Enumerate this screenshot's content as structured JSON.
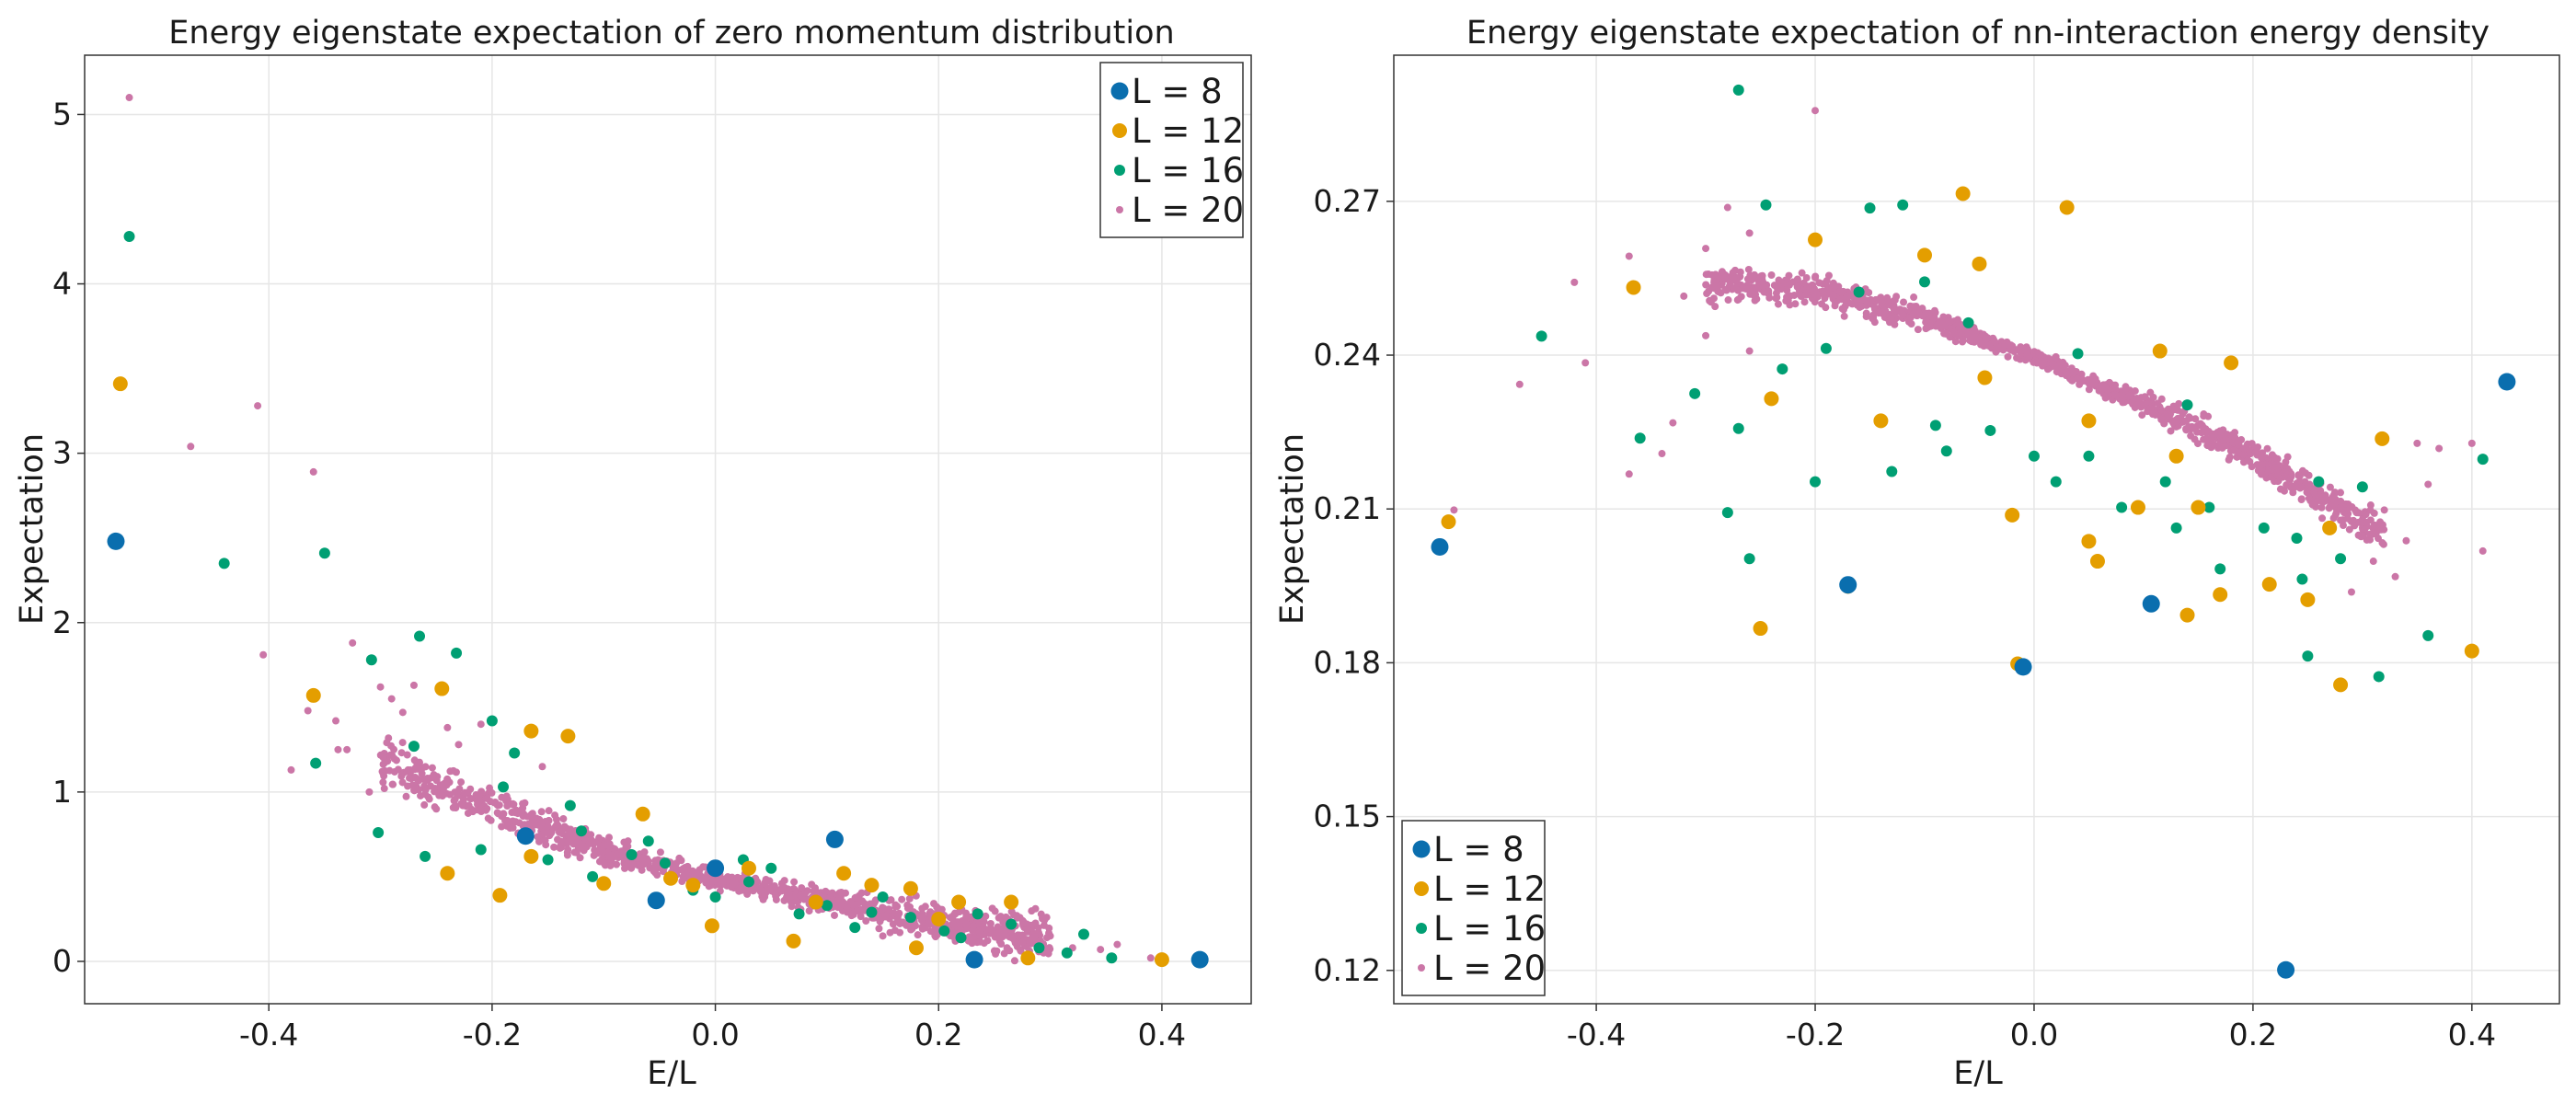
{
  "colors": {
    "L8": "#0a6eae",
    "L12": "#e49e00",
    "L16": "#009f73",
    "L20": "#cb76a7"
  },
  "chart_data": [
    {
      "type": "scatter",
      "title": "Energy eigenstate expectation of zero momentum distribution",
      "xlabel": "E/L",
      "ylabel": "Expectation",
      "xlim": [
        -0.565,
        0.48
      ],
      "ylim": [
        -0.25,
        5.35
      ],
      "xticks": [
        -0.4,
        -0.2,
        0.0,
        0.2,
        0.4
      ],
      "xtick_labels": [
        "-0.4",
        "-0.2",
        "0.0",
        "0.2",
        "0.4"
      ],
      "yticks": [
        0,
        1,
        2,
        3,
        4,
        5
      ],
      "ytick_labels": [
        "0",
        "1",
        "2",
        "3",
        "4",
        "5"
      ],
      "grid": true,
      "legend": "top-right",
      "series": [
        {
          "name": "L = 8",
          "marker": "L8",
          "points": [
            [
              -0.537,
              2.48
            ],
            [
              -0.17,
              0.74
            ],
            [
              0.107,
              0.72
            ],
            [
              0.232,
              0.01
            ],
            [
              0.434,
              0.01
            ],
            [
              -0.053,
              0.36
            ],
            [
              0.0,
              0.55
            ]
          ]
        },
        {
          "name": "L = 12",
          "marker": "L12",
          "points": [
            [
              -0.533,
              3.41
            ],
            [
              -0.36,
              1.57
            ],
            [
              -0.245,
              1.61
            ],
            [
              -0.24,
              0.52
            ],
            [
              -0.193,
              0.39
            ],
            [
              -0.165,
              1.36
            ],
            [
              -0.132,
              1.33
            ],
            [
              -0.1,
              0.46
            ],
            [
              -0.065,
              0.87
            ],
            [
              -0.04,
              0.49
            ],
            [
              -0.003,
              0.21
            ],
            [
              0.03,
              0.55
            ],
            [
              0.07,
              0.12
            ],
            [
              0.115,
              0.52
            ],
            [
              0.14,
              0.45
            ],
            [
              0.175,
              0.43
            ],
            [
              0.18,
              0.08
            ],
            [
              0.218,
              0.35
            ],
            [
              0.265,
              0.35
            ],
            [
              0.28,
              0.02
            ],
            [
              0.4,
              0.01
            ],
            [
              -0.165,
              0.62
            ],
            [
              0.09,
              0.35
            ],
            [
              0.2,
              0.25
            ],
            [
              -0.02,
              0.45
            ]
          ]
        },
        {
          "name": "L = 16",
          "marker": "L16",
          "points": [
            [
              -0.525,
              4.28
            ],
            [
              -0.44,
              2.35
            ],
            [
              -0.35,
              2.41
            ],
            [
              -0.308,
              1.78
            ],
            [
              -0.27,
              1.27
            ],
            [
              -0.265,
              1.92
            ],
            [
              -0.232,
              1.82
            ],
            [
              -0.358,
              1.17
            ],
            [
              -0.302,
              0.76
            ],
            [
              -0.26,
              0.62
            ],
            [
              -0.21,
              0.66
            ],
            [
              -0.2,
              1.42
            ],
            [
              -0.18,
              1.23
            ],
            [
              -0.15,
              0.6
            ],
            [
              -0.13,
              0.92
            ],
            [
              -0.11,
              0.5
            ],
            [
              -0.075,
              0.63
            ],
            [
              -0.045,
              0.58
            ],
            [
              -0.02,
              0.42
            ],
            [
              0.0,
              0.38
            ],
            [
              0.025,
              0.6
            ],
            [
              0.05,
              0.55
            ],
            [
              0.075,
              0.28
            ],
            [
              0.1,
              0.33
            ],
            [
              0.125,
              0.2
            ],
            [
              0.15,
              0.38
            ],
            [
              0.175,
              0.26
            ],
            [
              0.205,
              0.18
            ],
            [
              0.235,
              0.28
            ],
            [
              0.265,
              0.22
            ],
            [
              0.29,
              0.08
            ],
            [
              0.315,
              0.05
            ],
            [
              0.33,
              0.16
            ],
            [
              0.355,
              0.02
            ],
            [
              -0.19,
              1.03
            ],
            [
              -0.06,
              0.71
            ],
            [
              0.03,
              0.47
            ],
            [
              0.14,
              0.29
            ],
            [
              0.22,
              0.14
            ],
            [
              -0.12,
              0.77
            ]
          ]
        },
        {
          "name": "L = 20",
          "marker": "L20",
          "points": [
            [
              -0.525,
              5.1
            ],
            [
              -0.47,
              3.04
            ],
            [
              -0.41,
              3.28
            ],
            [
              -0.36,
              2.89
            ],
            [
              -0.405,
              1.81
            ],
            [
              -0.365,
              1.48
            ],
            [
              -0.338,
              1.25
            ],
            [
              -0.31,
              1.0
            ],
            [
              -0.29,
              1.55
            ],
            [
              -0.25,
              0.9
            ],
            [
              -0.23,
              1.28
            ],
            [
              -0.21,
              1.4
            ],
            [
              -0.155,
              1.15
            ],
            [
              -0.38,
              1.13
            ],
            [
              -0.325,
              1.88
            ],
            [
              -0.27,
              1.63
            ],
            [
              0.3,
              0.15
            ],
            [
              0.32,
              0.08
            ],
            [
              0.36,
              0.1
            ],
            [
              0.39,
              0.02
            ],
            [
              0.345,
              0.07
            ],
            [
              0.27,
              0.27
            ],
            [
              0.215,
              0.12
            ],
            [
              0.15,
              0.15
            ],
            [
              -0.33,
              1.25
            ],
            [
              -0.3,
              1.62
            ],
            [
              -0.28,
              1.47
            ],
            [
              -0.34,
              1.42
            ],
            [
              -0.26,
              1.07
            ],
            [
              -0.24,
              1.38
            ]
          ],
          "band": {
            "x0": -0.3,
            "x1": 0.3,
            "y_at": [
              [
                -0.3,
                1.18
              ],
              [
                -0.2,
                0.9
              ],
              [
                -0.1,
                0.65
              ],
              [
                0.0,
                0.48
              ],
              [
                0.1,
                0.36
              ],
              [
                0.2,
                0.24
              ],
              [
                0.3,
                0.14
              ]
            ],
            "spread_scale": 0.32,
            "count": 1100
          }
        }
      ]
    },
    {
      "type": "scatter",
      "title": "Energy eigenstate expectation of nn-interaction energy density",
      "xlabel": "E/L",
      "ylabel": "Expectation",
      "xlim": [
        -0.585,
        0.48
      ],
      "ylim": [
        0.1135,
        0.2985
      ],
      "xticks": [
        -0.4,
        -0.2,
        0.0,
        0.2,
        0.4
      ],
      "xtick_labels": [
        "-0.4",
        "-0.2",
        "0.0",
        "0.2",
        "0.4"
      ],
      "yticks": [
        0.12,
        0.15,
        0.18,
        0.21,
        0.24,
        0.27
      ],
      "ytick_labels": [
        "0.12",
        "0.15",
        "0.18",
        "0.21",
        "0.24",
        "0.27"
      ],
      "grid": true,
      "legend": "bottom-left",
      "series": [
        {
          "name": "L = 8",
          "marker": "L8",
          "points": [
            [
              -0.543,
              0.2026
            ],
            [
              -0.17,
              0.1952
            ],
            [
              -0.01,
              0.1792
            ],
            [
              0.107,
              0.1915
            ],
            [
              0.23,
              0.1201
            ],
            [
              0.432,
              0.2348
            ]
          ]
        },
        {
          "name": "L = 12",
          "marker": "L12",
          "points": [
            [
              -0.535,
              0.2075
            ],
            [
              -0.366,
              0.2532
            ],
            [
              -0.2,
              0.2625
            ],
            [
              -0.25,
              0.1867
            ],
            [
              -0.24,
              0.2315
            ],
            [
              -0.17,
              0.1949
            ],
            [
              -0.14,
              0.2272
            ],
            [
              -0.1,
              0.2595
            ],
            [
              -0.065,
              0.2715
            ],
            [
              -0.05,
              0.2578
            ],
            [
              -0.045,
              0.2356
            ],
            [
              -0.02,
              0.2088
            ],
            [
              -0.015,
              0.1798
            ],
            [
              0.03,
              0.2688
            ],
            [
              0.05,
              0.2037
            ],
            [
              0.058,
              0.1998
            ],
            [
              0.095,
              0.2103
            ],
            [
              0.115,
              0.2408
            ],
            [
              0.13,
              0.2203
            ],
            [
              0.14,
              0.1893
            ],
            [
              0.15,
              0.2103
            ],
            [
              0.18,
              0.2385
            ],
            [
              0.17,
              0.1933
            ],
            [
              0.215,
              0.1953
            ],
            [
              0.25,
              0.1923
            ],
            [
              0.27,
              0.2063
            ],
            [
              0.28,
              0.1757
            ],
            [
              0.318,
              0.2237
            ],
            [
              0.4,
              0.1823
            ],
            [
              0.05,
              0.2272
            ]
          ]
        },
        {
          "name": "L = 16",
          "marker": "L16",
          "points": [
            [
              -0.27,
              0.2917
            ],
            [
              -0.45,
              0.2437
            ],
            [
              -0.36,
              0.2238
            ],
            [
              -0.31,
              0.2325
            ],
            [
              -0.27,
              0.2257
            ],
            [
              -0.26,
              0.2003
            ],
            [
              -0.23,
              0.2373
            ],
            [
              -0.2,
              0.2153
            ],
            [
              -0.13,
              0.2173
            ],
            [
              -0.245,
              0.2693
            ],
            [
              -0.15,
              0.2687
            ],
            [
              -0.12,
              0.2693
            ],
            [
              -0.1,
              0.2543
            ],
            [
              -0.09,
              0.2263
            ],
            [
              -0.08,
              0.2213
            ],
            [
              -0.04,
              0.2253
            ],
            [
              0.0,
              0.2203
            ],
            [
              0.02,
              0.2153
            ],
            [
              0.05,
              0.2203
            ],
            [
              0.08,
              0.2103
            ],
            [
              0.12,
              0.2153
            ],
            [
              0.13,
              0.2063
            ],
            [
              0.16,
              0.2103
            ],
            [
              0.17,
              0.1983
            ],
            [
              0.21,
              0.2063
            ],
            [
              0.24,
              0.2043
            ],
            [
              0.245,
              0.1963
            ],
            [
              0.25,
              0.1813
            ],
            [
              0.28,
              0.2003
            ],
            [
              0.3,
              0.2143
            ],
            [
              0.315,
              0.1773
            ],
            [
              0.36,
              0.1853
            ],
            [
              0.41,
              0.2197
            ],
            [
              0.26,
              0.2153
            ],
            [
              -0.28,
              0.2093
            ],
            [
              -0.16,
              0.2523
            ],
            [
              -0.06,
              0.2463
            ],
            [
              0.04,
              0.2403
            ],
            [
              0.14,
              0.2303
            ],
            [
              -0.19,
              0.2413
            ]
          ]
        },
        {
          "name": "L = 20",
          "marker": "L20",
          "points": [
            [
              -0.2,
              0.2877
            ],
            [
              -0.42,
              0.2542
            ],
            [
              -0.41,
              0.2385
            ],
            [
              -0.47,
              0.2343
            ],
            [
              -0.37,
              0.2593
            ],
            [
              -0.37,
              0.2168
            ],
            [
              -0.34,
              0.2208
            ],
            [
              -0.33,
              0.2268
            ],
            [
              -0.32,
              0.2515
            ],
            [
              -0.3,
              0.2608
            ],
            [
              -0.28,
              0.2688
            ],
            [
              -0.26,
              0.2638
            ],
            [
              0.32,
              0.2098
            ],
            [
              0.35,
              0.2228
            ],
            [
              0.37,
              0.2218
            ],
            [
              0.4,
              0.2228
            ],
            [
              0.36,
              0.2148
            ],
            [
              0.33,
              0.1968
            ],
            [
              0.3,
              0.2048
            ],
            [
              0.29,
              0.1938
            ],
            [
              -0.53,
              0.2098
            ],
            [
              0.41,
              0.2018
            ],
            [
              -0.3,
              0.2438
            ],
            [
              -0.26,
              0.2408
            ],
            [
              0.34,
              0.2038
            ],
            [
              0.31,
              0.1998
            ]
          ],
          "band": {
            "x0": -0.3,
            "x1": 0.32,
            "y_at": [
              [
                -0.3,
                0.254
              ],
              [
                -0.2,
                0.2525
              ],
              [
                -0.1,
                0.2475
              ],
              [
                0.0,
                0.2395
              ],
              [
                0.1,
                0.2305
              ],
              [
                0.2,
                0.2205
              ],
              [
                0.3,
                0.2075
              ],
              [
                0.32,
                0.205
              ]
            ],
            "spread_scale": 0.0085,
            "count": 1100
          }
        }
      ]
    }
  ]
}
